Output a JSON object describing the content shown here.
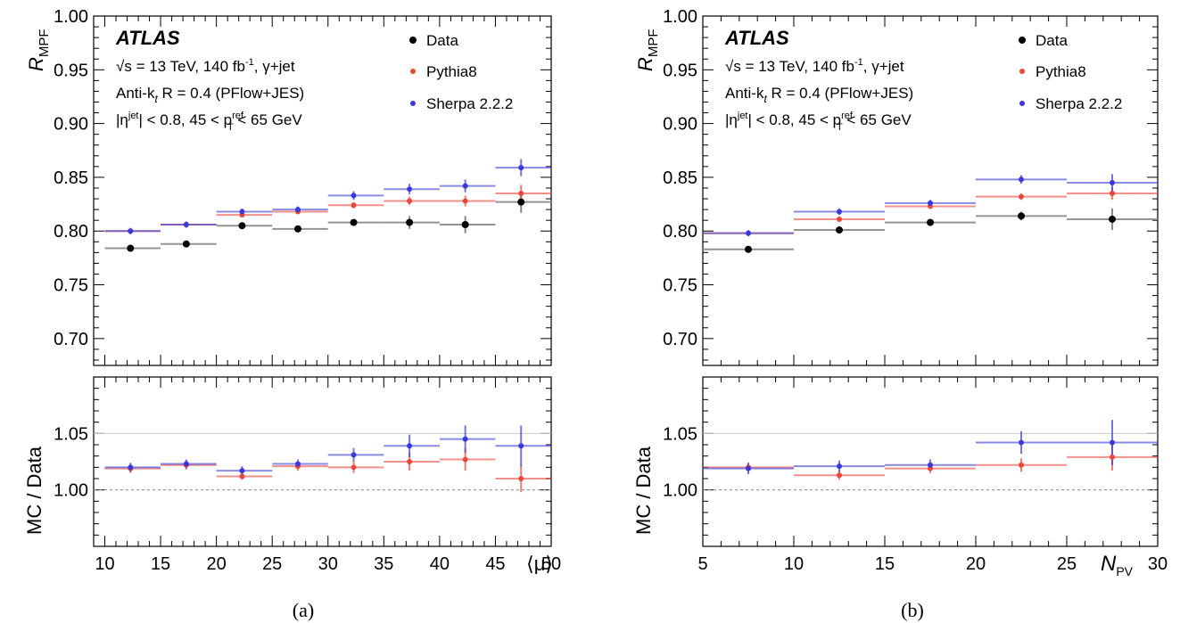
{
  "chart_data": [
    {
      "type": "scatter",
      "caption": "(a)",
      "xlabel": "⟨μ⟩",
      "xlim": [
        9,
        50
      ],
      "xticks": [
        10,
        15,
        20,
        25,
        30,
        35,
        40,
        45,
        50
      ],
      "xtick_labels": [
        "10",
        "15",
        "20",
        "25",
        "30",
        "35",
        "40",
        "45",
        "50"
      ],
      "top": {
        "ylabel": "R_MPF",
        "ylim": [
          0.675,
          1.0
        ],
        "yticks": [
          0.7,
          0.75,
          0.8,
          0.85,
          0.9,
          0.95,
          1.0
        ],
        "ytick_labels": [
          "0.70",
          "0.75",
          "0.80",
          "0.85",
          "0.90",
          "0.95",
          "1.00"
        ],
        "bins": [
          [
            10,
            15
          ],
          [
            15,
            20
          ],
          [
            20,
            25
          ],
          [
            25,
            30
          ],
          [
            30,
            35
          ],
          [
            35,
            40
          ],
          [
            40,
            45
          ],
          [
            45,
            50
          ]
        ],
        "x": [
          12.3,
          17.3,
          22.3,
          27.3,
          32.3,
          37.3,
          42.3,
          47.3
        ],
        "series": [
          {
            "name": "Data",
            "color": "#000000",
            "values": [
              0.784,
              0.788,
              0.805,
              0.802,
              0.808,
              0.808,
              0.806,
              0.827
            ],
            "errors": [
              0.002,
              0.002,
              0.002,
              0.002,
              0.003,
              0.006,
              0.008,
              0.01
            ]
          },
          {
            "name": "Pythia8",
            "color": "#e8483a",
            "values": [
              0.8,
              0.806,
              0.815,
              0.818,
              0.824,
              0.828,
              0.828,
              0.835
            ],
            "errors": [
              0.002,
              0.002,
              0.002,
              0.002,
              0.003,
              0.004,
              0.005,
              0.008
            ]
          },
          {
            "name": "Sherpa 2.2.2",
            "color": "#3a3ad6",
            "values": [
              0.8,
              0.806,
              0.818,
              0.82,
              0.833,
              0.839,
              0.842,
              0.859
            ],
            "errors": [
              0.003,
              0.003,
              0.003,
              0.003,
              0.004,
              0.005,
              0.006,
              0.008
            ]
          }
        ]
      },
      "bottom": {
        "ylabel": "MC / Data",
        "ylim": [
          0.95,
          1.1
        ],
        "yticks": [
          1.0,
          1.05
        ],
        "ytick_labels": [
          "1.00",
          "1.05"
        ],
        "reference": 1.0,
        "x": [
          12.3,
          17.3,
          22.3,
          27.3,
          32.3,
          37.3,
          42.3,
          47.3
        ],
        "series": [
          {
            "name": "Pythia8",
            "color": "#e8483a",
            "values": [
              1.019,
              1.022,
              1.012,
              1.021,
              1.02,
              1.025,
              1.027,
              1.01
            ],
            "errors": [
              0.004,
              0.004,
              0.003,
              0.004,
              0.005,
              0.008,
              0.01,
              0.012
            ]
          },
          {
            "name": "Sherpa 2.2.2",
            "color": "#3a3ad6",
            "values": [
              1.02,
              1.023,
              1.017,
              1.023,
              1.031,
              1.039,
              1.045,
              1.039
            ],
            "errors": [
              0.004,
              0.004,
              0.004,
              0.004,
              0.006,
              0.01,
              0.012,
              0.018
            ]
          }
        ]
      }
    },
    {
      "type": "scatter",
      "caption": "(b)",
      "xlabel": "N_PV",
      "xlim": [
        5,
        30
      ],
      "xticks": [
        5,
        10,
        15,
        20,
        25,
        30
      ],
      "xtick_labels": [
        "5",
        "10",
        "15",
        "20",
        "25",
        "30"
      ],
      "top": {
        "ylabel": "R_MPF",
        "ylim": [
          0.675,
          1.0
        ],
        "yticks": [
          0.7,
          0.75,
          0.8,
          0.85,
          0.9,
          0.95,
          1.0
        ],
        "ytick_labels": [
          "0.70",
          "0.75",
          "0.80",
          "0.85",
          "0.90",
          "0.95",
          "1.00"
        ],
        "bins": [
          [
            5,
            10
          ],
          [
            10,
            15
          ],
          [
            15,
            20
          ],
          [
            20,
            25
          ],
          [
            25,
            30
          ]
        ],
        "x": [
          7.5,
          12.5,
          17.5,
          22.5,
          27.5
        ],
        "series": [
          {
            "name": "Data",
            "color": "#000000",
            "values": [
              0.783,
              0.801,
              0.808,
              0.814,
              0.811
            ],
            "errors": [
              0.002,
              0.002,
              0.002,
              0.004,
              0.01
            ]
          },
          {
            "name": "Pythia8",
            "color": "#e8483a",
            "values": [
              0.798,
              0.811,
              0.823,
              0.832,
              0.835
            ],
            "errors": [
              0.002,
              0.002,
              0.002,
              0.003,
              0.006
            ]
          },
          {
            "name": "Sherpa 2.2.2",
            "color": "#3a3ad6",
            "values": [
              0.798,
              0.818,
              0.826,
              0.848,
              0.845
            ],
            "errors": [
              0.003,
              0.003,
              0.003,
              0.004,
              0.008
            ]
          }
        ]
      },
      "bottom": {
        "ylabel": "MC / Data",
        "ylim": [
          0.95,
          1.1
        ],
        "yticks": [
          1.0,
          1.05
        ],
        "ytick_labels": [
          "1.00",
          "1.05"
        ],
        "reference": 1.0,
        "x": [
          7.5,
          12.5,
          17.5,
          22.5,
          27.5
        ],
        "series": [
          {
            "name": "Pythia8",
            "color": "#e8483a",
            "values": [
              1.02,
              1.013,
              1.019,
              1.022,
              1.029
            ],
            "errors": [
              0.004,
              0.004,
              0.004,
              0.006,
              0.012
            ]
          },
          {
            "name": "Sherpa 2.2.2",
            "color": "#3a3ad6",
            "values": [
              1.019,
              1.021,
              1.022,
              1.042,
              1.042
            ],
            "errors": [
              0.005,
              0.005,
              0.005,
              0.01,
              0.02
            ]
          }
        ]
      }
    }
  ],
  "annotations": {
    "atlas": "ATLAS",
    "line1_prefix": "√s",
    "line1_mid": " = 13 TeV, 140 fb",
    "line1_sup": "-1",
    "line1_suffix": ", γ+jet",
    "line2_prefix": "Anti-k",
    "line2_sub": "t",
    "line2_suffix": " R = 0.4 (PFlow+JES)",
    "line3_a": "|η",
    "line3_sup1": "jet",
    "line3_b": "| < 0.8, 45 < p",
    "line3_sup2": "ref",
    "line3_sub2": "T",
    "line3_c": " < 65 GeV"
  },
  "ylabel_main": "R",
  "ylabel_main_sub": "MPF",
  "ylabel_ratio": "MC / Data",
  "xlabel_b_main": "N",
  "xlabel_b_sub": "PV"
}
